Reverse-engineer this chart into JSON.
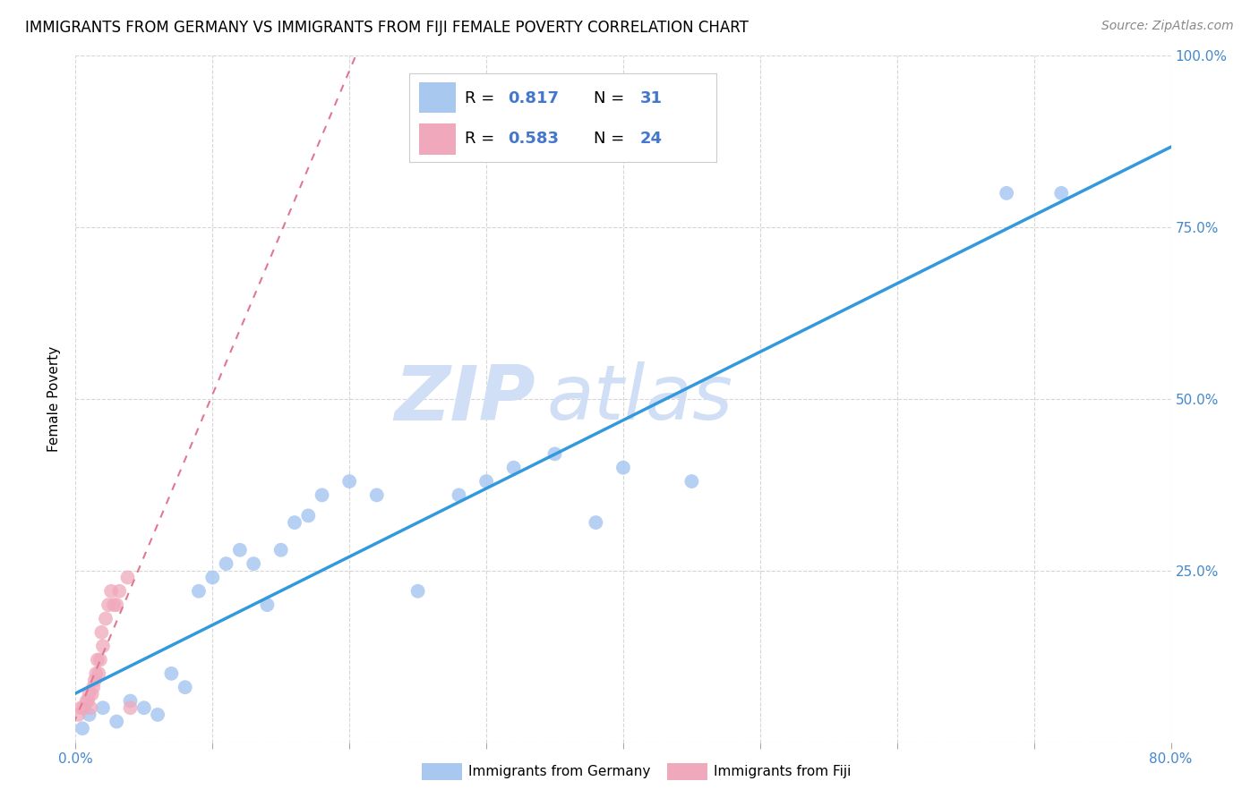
{
  "title": "IMMIGRANTS FROM GERMANY VS IMMIGRANTS FROM FIJI FEMALE POVERTY CORRELATION CHART",
  "source": "Source: ZipAtlas.com",
  "ylabel": "Female Poverty",
  "xlim": [
    0,
    0.8
  ],
  "ylim": [
    0,
    1.0
  ],
  "germany_R": 0.817,
  "germany_N": 31,
  "fiji_R": 0.583,
  "fiji_N": 24,
  "germany_color": "#a8c8f0",
  "fiji_color": "#f0a8bc",
  "germany_line_color": "#3399dd",
  "fiji_line_color": "#e07890",
  "watermark_zip": "ZIP",
  "watermark_atlas": "atlas",
  "watermark_color": "#d0dff5",
  "legend_color": "#4477cc",
  "germany_x": [
    0.005,
    0.01,
    0.02,
    0.03,
    0.04,
    0.05,
    0.06,
    0.07,
    0.08,
    0.09,
    0.1,
    0.11,
    0.12,
    0.13,
    0.14,
    0.15,
    0.16,
    0.17,
    0.18,
    0.2,
    0.22,
    0.25,
    0.28,
    0.3,
    0.32,
    0.35,
    0.38,
    0.4,
    0.45,
    0.68,
    0.72
  ],
  "germany_y": [
    0.02,
    0.04,
    0.05,
    0.03,
    0.06,
    0.05,
    0.04,
    0.1,
    0.08,
    0.22,
    0.24,
    0.26,
    0.28,
    0.26,
    0.2,
    0.28,
    0.32,
    0.33,
    0.36,
    0.38,
    0.36,
    0.22,
    0.36,
    0.38,
    0.4,
    0.42,
    0.32,
    0.4,
    0.38,
    0.8,
    0.8
  ],
  "fiji_x": [
    0.002,
    0.004,
    0.006,
    0.008,
    0.009,
    0.01,
    0.011,
    0.012,
    0.013,
    0.014,
    0.015,
    0.016,
    0.017,
    0.018,
    0.019,
    0.02,
    0.022,
    0.024,
    0.026,
    0.028,
    0.03,
    0.032,
    0.038,
    0.04
  ],
  "fiji_y": [
    0.04,
    0.05,
    0.05,
    0.06,
    0.06,
    0.07,
    0.05,
    0.07,
    0.08,
    0.09,
    0.1,
    0.12,
    0.1,
    0.12,
    0.16,
    0.14,
    0.18,
    0.2,
    0.22,
    0.2,
    0.2,
    0.22,
    0.24,
    0.05
  ]
}
